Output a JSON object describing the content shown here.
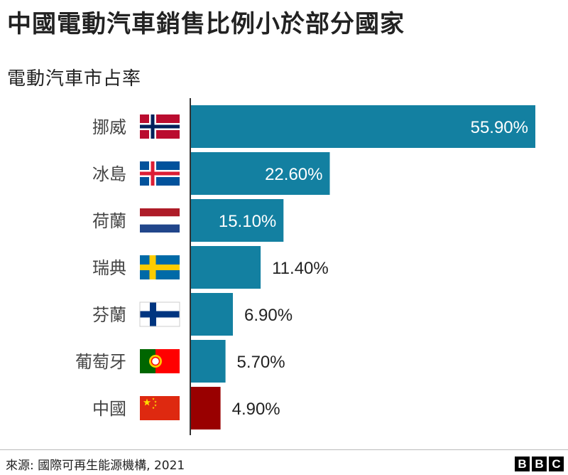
{
  "chart_data": {
    "type": "bar",
    "orientation": "horizontal",
    "title": "中國電動汽車銷售比例小於部分國家",
    "subtitle": "電動汽車市占率",
    "categories": [
      "挪威",
      "冰島",
      "荷蘭",
      "瑞典",
      "芬蘭",
      "葡萄牙",
      "中國"
    ],
    "values": [
      55.9,
      22.6,
      15.1,
      11.4,
      6.9,
      5.7,
      4.9
    ],
    "value_labels": [
      "55.90%",
      "22.60%",
      "15.10%",
      "11.40%",
      "6.90%",
      "5.70%",
      "4.90%"
    ],
    "flags": [
      "norway-flag-icon",
      "iceland-flag-icon",
      "netherlands-flag-icon",
      "sweden-flag-icon",
      "finland-flag-icon",
      "portugal-flag-icon",
      "china-flag-icon"
    ],
    "xlim": [
      0,
      55.9
    ],
    "colors": {
      "default": "#1380a1",
      "highlight": "#990000",
      "highlight_category": "中國",
      "label_inside": "#ffffff",
      "label_outside": "#222222"
    },
    "grid": false,
    "legend": "none"
  },
  "footer": {
    "source": "來源: 國際可再生能源機構, 2021",
    "logo": [
      "B",
      "B",
      "C"
    ]
  }
}
